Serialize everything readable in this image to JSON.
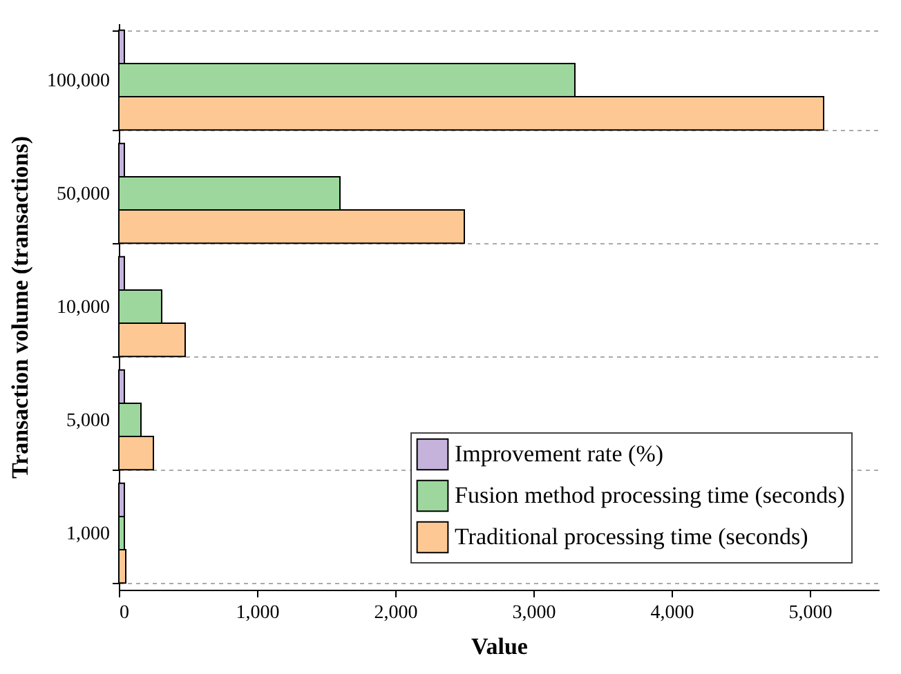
{
  "chart_data": {
    "type": "bar",
    "orientation": "horizontal",
    "xlabel": "Value",
    "ylabel": "Transaction volume (transactions)",
    "categories": [
      "100,000",
      "50,000",
      "10,000",
      "5,000",
      "1,000"
    ],
    "series": [
      {
        "name": "Improvement rate (%)",
        "color": "#c5b3dc",
        "values": [
          40,
          40,
          40,
          40,
          40
        ]
      },
      {
        "name": "Fusion method processing time (seconds)",
        "color": "#9dd79d",
        "values": [
          3300,
          1600,
          310,
          160,
          40
        ]
      },
      {
        "name": "Traditional processing time (seconds)",
        "color": "#fdc894",
        "values": [
          5100,
          2500,
          480,
          250,
          50
        ]
      }
    ],
    "xlim": [
      0,
      5500
    ],
    "xticks": [
      0,
      {
        "value": 1000,
        "label": "1,000"
      },
      {
        "value": 2000,
        "label": "2,000"
      },
      {
        "value": 3000,
        "label": "3,000"
      },
      {
        "value": 4000,
        "label": "4,000"
      },
      {
        "value": 5000,
        "label": "5,000"
      }
    ],
    "grid": "y",
    "legend": "bottom right"
  }
}
